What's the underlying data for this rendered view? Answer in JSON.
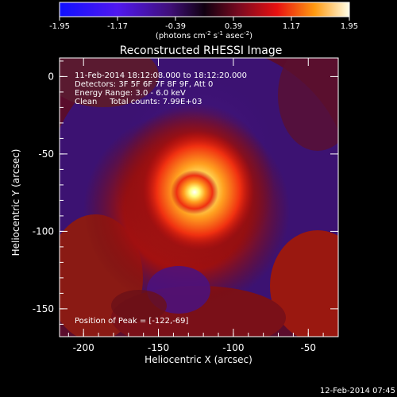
{
  "colorbar": {
    "tick_labels": [
      "-1.95",
      "-1.17",
      "-0.39",
      "0.39",
      "1.17",
      "1.95"
    ],
    "units_prefix": "(photons cm",
    "units_sup1": "-2",
    "units_mid": " s",
    "units_sup2": "-1",
    "units_mid2": " asec",
    "units_sup3": "-2",
    "units_suffix": ")"
  },
  "plot": {
    "title": "Reconstructed RHESSI Image",
    "info_lines": [
      "11-Feb-2014 18:12:08.000 to 18:12:20.000",
      "Detectors: 3F 5F 6F 7F 8F 9F, Att 0",
      "Energy Range: 3.0 - 6.0 keV",
      "Clean     Total counts: 7.99E+03"
    ],
    "peak_label": "Position of Peak = [-122,-69]",
    "xlabel": "Heliocentric X (arcsec)",
    "ylabel": "Heliocentric Y (arcsec)",
    "x_ticks": [
      "-200",
      "-150",
      "-100",
      "-50"
    ],
    "y_ticks": [
      "0",
      "-50",
      "-100",
      "-150"
    ]
  },
  "footer": {
    "date": "12-Feb-2014 07:45"
  },
  "colors": {
    "background": "#000000",
    "low": "#0000ff",
    "mid": "#8000ff",
    "zero": "#000000",
    "high": "#ff0000",
    "peak": "#ffffff"
  }
}
